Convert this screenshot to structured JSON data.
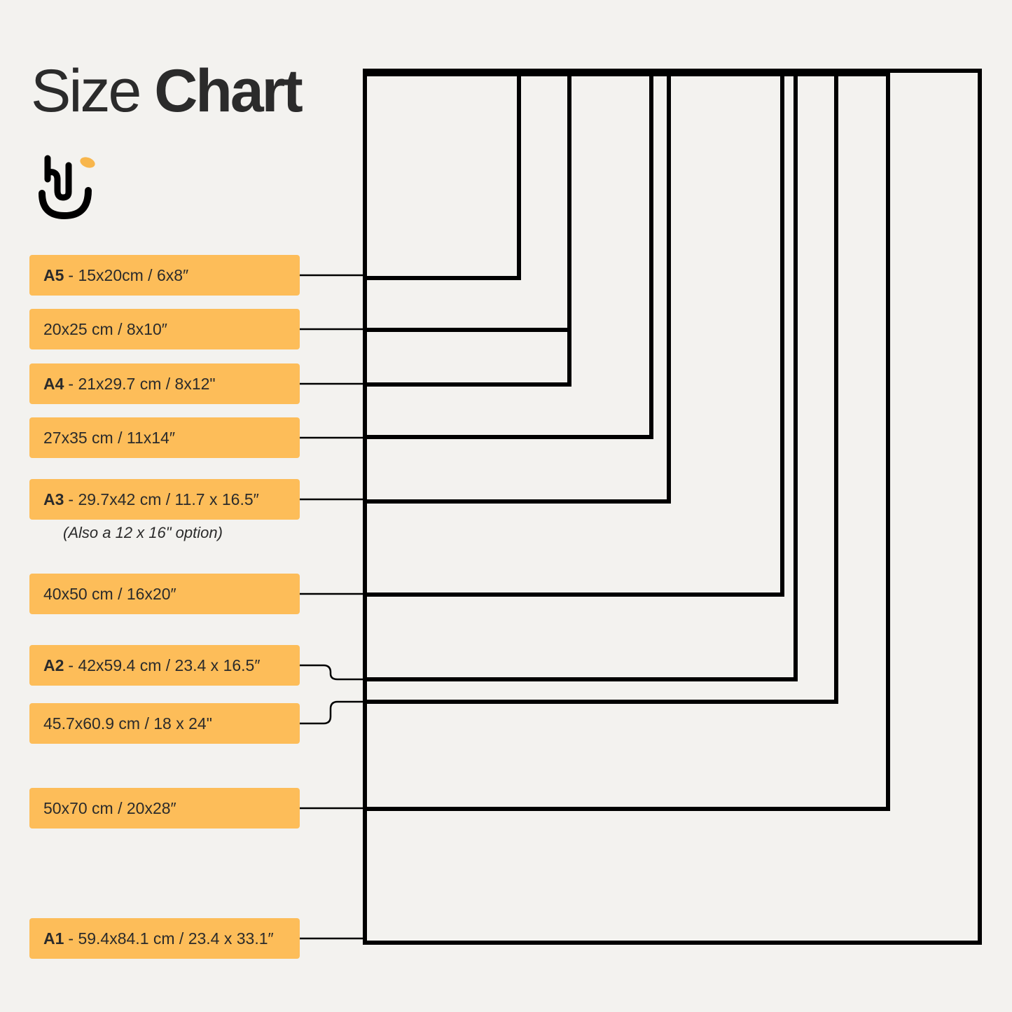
{
  "title": {
    "light": "Size",
    "bold": "Chart"
  },
  "logo": {
    "icon": "brand-logo-icon",
    "accent_color": "#f8b64c"
  },
  "colors": {
    "background": "#f3f2ef",
    "label_fill": "#fdbd59",
    "frame_stroke": "#000000",
    "text": "#2b2b2b"
  },
  "sizes": [
    {
      "code": "A5",
      "text": "- 15x20cm / 6x8″",
      "w_cm": 15,
      "h_cm": 20
    },
    {
      "code": "",
      "text": "20x25 cm / 8x10″",
      "w_cm": 20,
      "h_cm": 25
    },
    {
      "code": "A4",
      "text": "- 21x29.7 cm / 8x12\"",
      "w_cm": 21,
      "h_cm": 29.7
    },
    {
      "code": "",
      "text": "27x35 cm / 11x14″",
      "w_cm": 27,
      "h_cm": 35
    },
    {
      "code": "A3",
      "text": "- 29.7x42 cm / 11.7 x 16.5″",
      "w_cm": 29.7,
      "h_cm": 42
    },
    {
      "code": "",
      "text": "40x50 cm / 16x20″",
      "w_cm": 40,
      "h_cm": 50
    },
    {
      "code": "A2",
      "text": "- 42x59.4 cm / 23.4 x 16.5″",
      "w_cm": 42,
      "h_cm": 59.4
    },
    {
      "code": "",
      "text": "45.7x60.9 cm / 18 x 24\"",
      "w_cm": 45.7,
      "h_cm": 60.9
    },
    {
      "code": "",
      "text": "50x70 cm / 20x28″",
      "w_cm": 50,
      "h_cm": 70
    },
    {
      "code": "A1",
      "text": "- 59.4x84.1 cm / 23.4 x 33.1″",
      "w_cm": 59.4,
      "h_cm": 84.1
    }
  ],
  "a3_note": "(Also a 12 x 16\" option)"
}
